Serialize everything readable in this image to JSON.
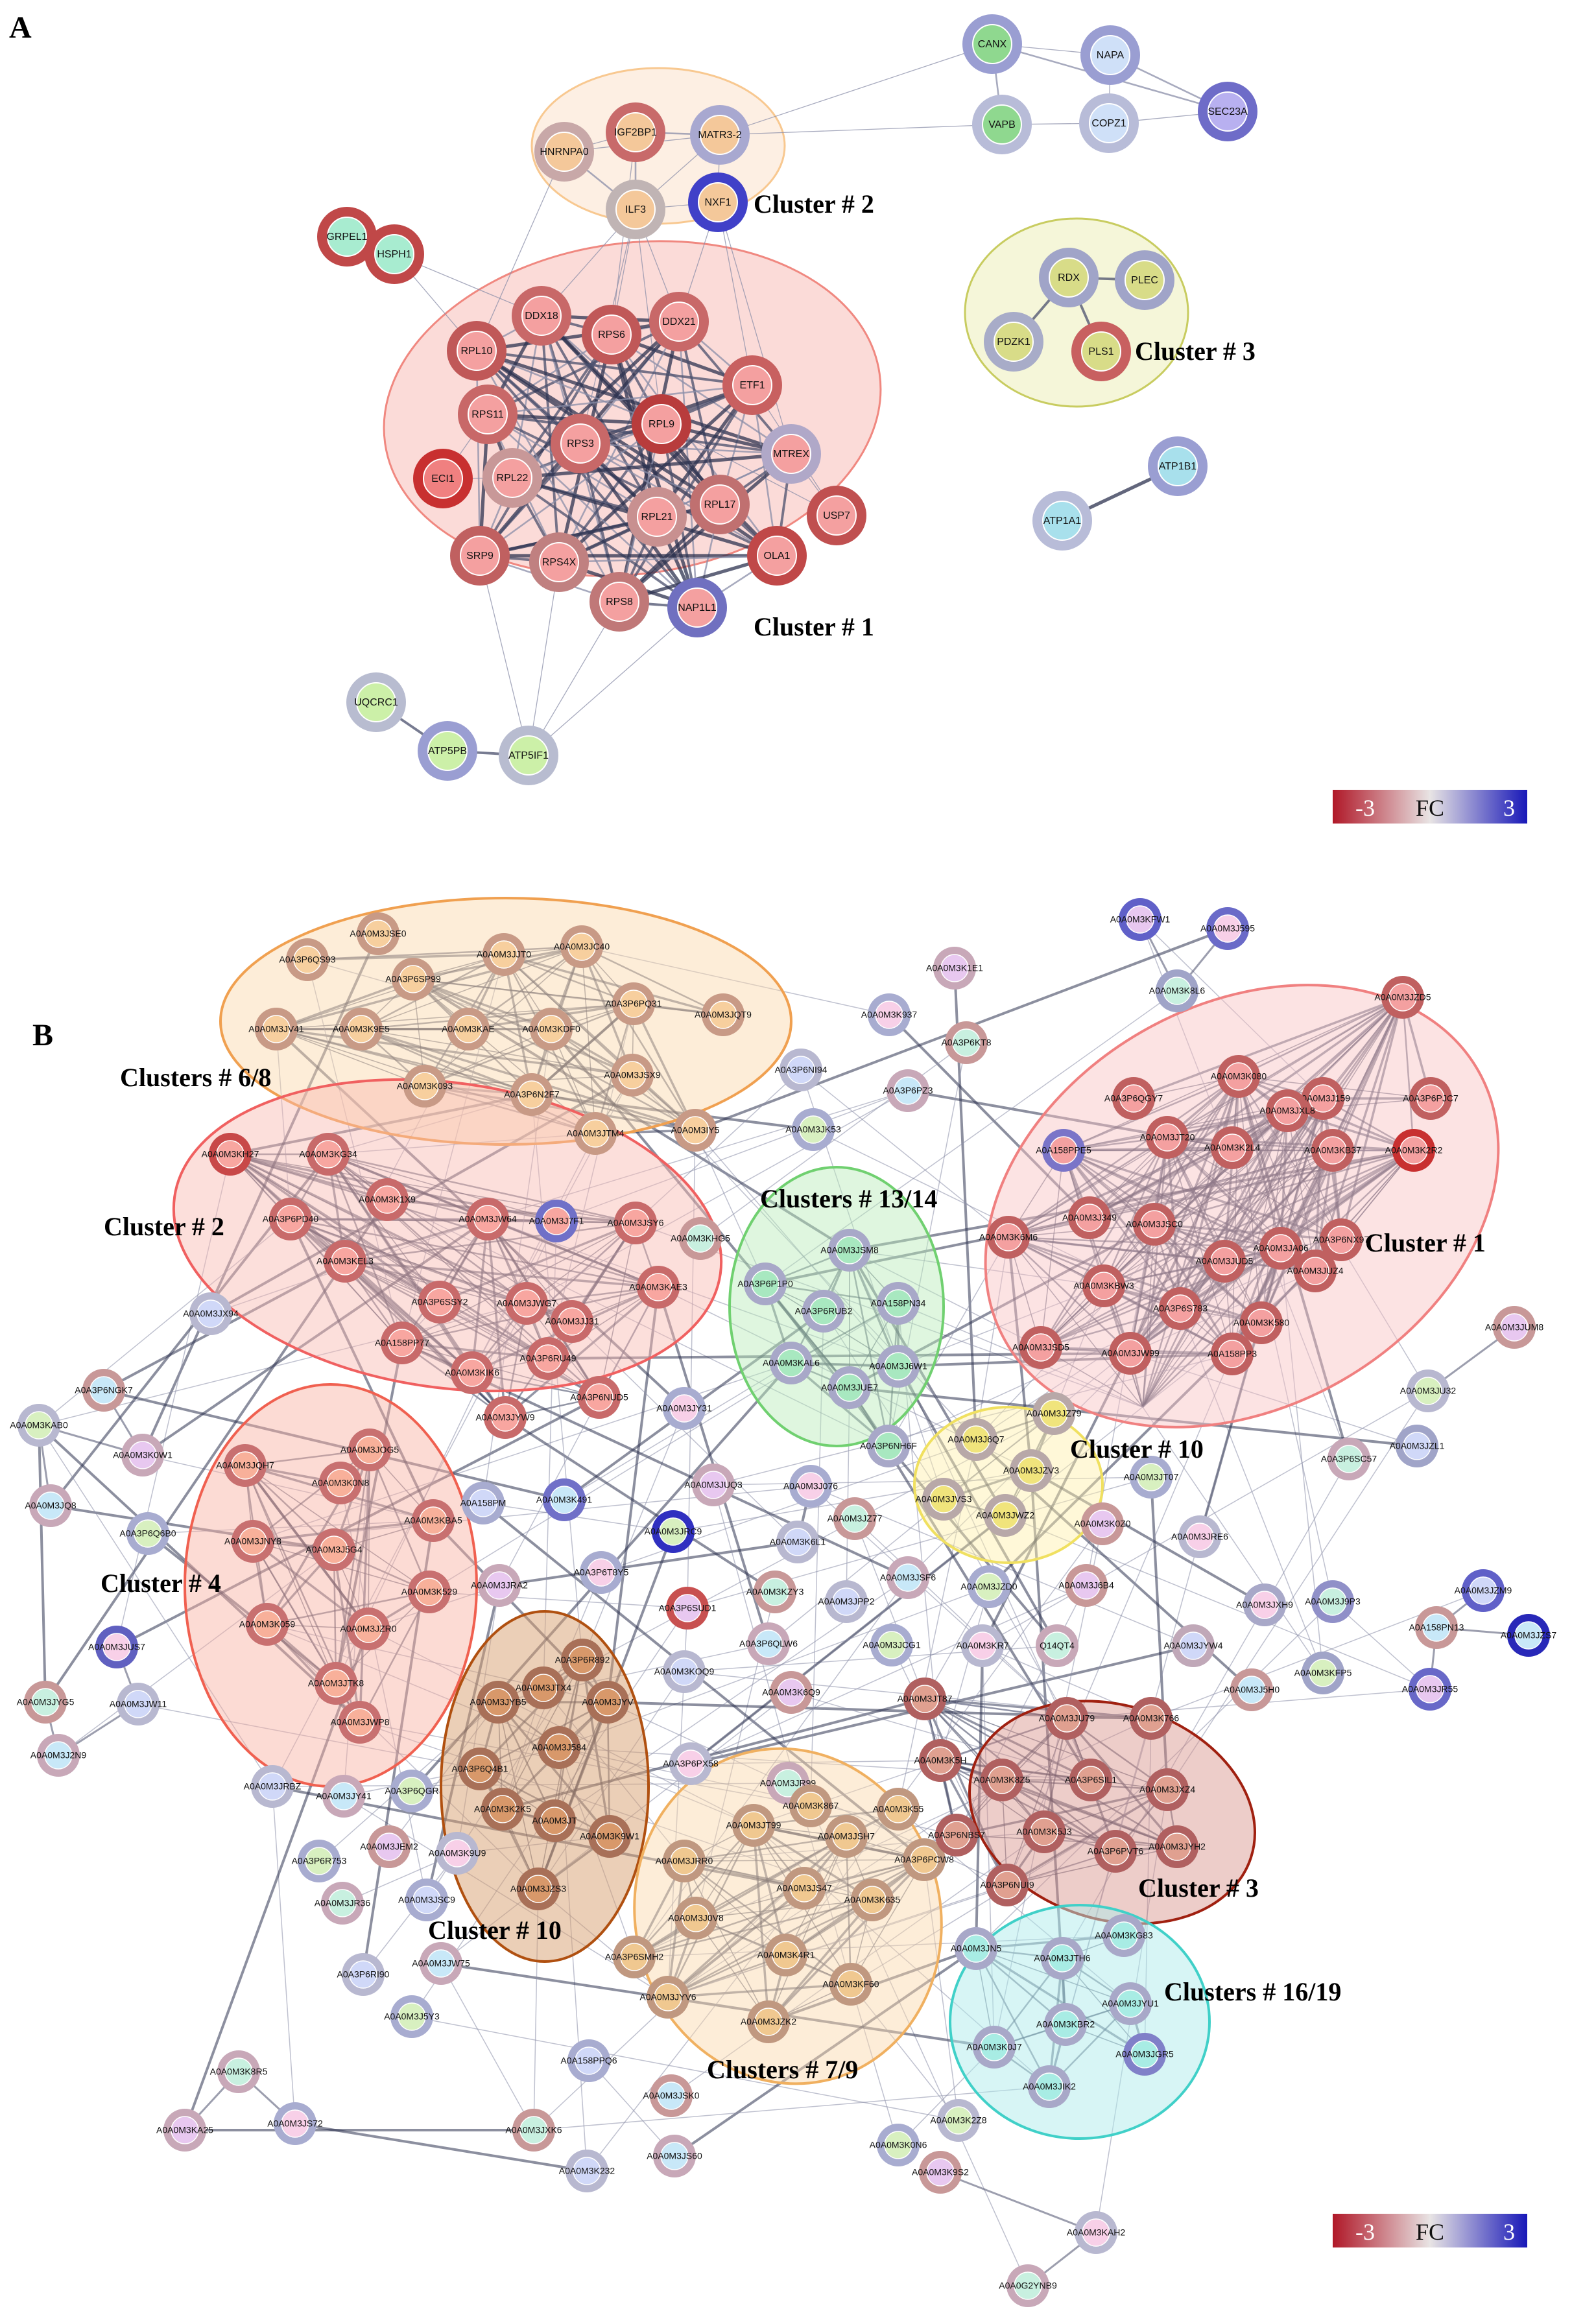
{
  "panel_a": {
    "label": "A",
    "clusters": [
      {
        "label": "Cluster # 1",
        "color": "#f08880"
      },
      {
        "label": "Cluster # 2",
        "color": "#f8c890"
      },
      {
        "label": "Cluster # 3",
        "color": "#c8cc60"
      }
    ],
    "nodes": [
      {
        "id": "CANX",
        "ring": "#9a9ed2",
        "fill": "#8fd88f"
      },
      {
        "id": "NAPA",
        "ring": "#9a9ed2",
        "fill": "#cfe0f8"
      },
      {
        "id": "VAPB",
        "ring": "#b8bcd8",
        "fill": "#8fd88f"
      },
      {
        "id": "COPZ1",
        "ring": "#b8bcd8",
        "fill": "#cfe0f8"
      },
      {
        "id": "SEC23A",
        "ring": "#6e6cc8",
        "fill": "#b8b0f0"
      },
      {
        "id": "IGF2BP1",
        "ring": "#c86a6a",
        "fill": "#f4c89a"
      },
      {
        "id": "MATR3-2",
        "ring": "#a8a8d0",
        "fill": "#f4c89a"
      },
      {
        "id": "HNRNPA0",
        "ring": "#c8a8a8",
        "fill": "#f4c89a"
      },
      {
        "id": "ILF3",
        "ring": "#c0b4b4",
        "fill": "#f4c89a"
      },
      {
        "id": "NXF1",
        "ring": "#4040c8",
        "fill": "#f4c89a"
      },
      {
        "id": "GRPEL1",
        "ring": "#c04848",
        "fill": "#a8ecd0"
      },
      {
        "id": "HSPH1",
        "ring": "#c04848",
        "fill": "#a8ecd0"
      },
      {
        "id": "RDX",
        "ring": "#a0a4c8",
        "fill": "#d8dc88"
      },
      {
        "id": "PLEC",
        "ring": "#a0a4c8",
        "fill": "#d8dc88"
      },
      {
        "id": "PDZK1",
        "ring": "#a8acc8",
        "fill": "#d8dc88"
      },
      {
        "id": "PLS1",
        "ring": "#c86060",
        "fill": "#d8dc88"
      },
      {
        "id": "DDX18",
        "ring": "#c86868",
        "fill": "#f4a0a0"
      },
      {
        "id": "RPS6",
        "ring": "#c05858",
        "fill": "#f4a0a0"
      },
      {
        "id": "DDX21",
        "ring": "#c86868",
        "fill": "#f4a0a0"
      },
      {
        "id": "RPL10",
        "ring": "#c05858",
        "fill": "#f4a0a0"
      },
      {
        "id": "ETF1",
        "ring": "#c86060",
        "fill": "#f4a0a0"
      },
      {
        "id": "RPS11",
        "ring": "#c86868",
        "fill": "#f4a0a0"
      },
      {
        "id": "RPL9",
        "ring": "#b83c3c",
        "fill": "#f4a0a0"
      },
      {
        "id": "RPS3",
        "ring": "#c86868",
        "fill": "#f4a0a0"
      },
      {
        "id": "MTREX",
        "ring": "#b0a8c8",
        "fill": "#f4a0a0"
      },
      {
        "id": "ECI1",
        "ring": "#c83030",
        "fill": "#f08080"
      },
      {
        "id": "RPL22",
        "ring": "#c89898",
        "fill": "#f4a0a0"
      },
      {
        "id": "RPL21",
        "ring": "#c89090",
        "fill": "#f4a0a0"
      },
      {
        "id": "RPL17",
        "ring": "#c07070",
        "fill": "#f4a0a0"
      },
      {
        "id": "USP7",
        "ring": "#c05050",
        "fill": "#f4a0a0"
      },
      {
        "id": "SRP9",
        "ring": "#c06060",
        "fill": "#f4a0a0"
      },
      {
        "id": "RPS4X",
        "ring": "#c08080",
        "fill": "#f4a0a0"
      },
      {
        "id": "OLA1",
        "ring": "#c04848",
        "fill": "#f4a0a0"
      },
      {
        "id": "RPS8",
        "ring": "#c07878",
        "fill": "#f4a0a0"
      },
      {
        "id": "NAP1L1",
        "ring": "#7070c0",
        "fill": "#f4a0a0"
      },
      {
        "id": "ATP1B1",
        "ring": "#9a9ed2",
        "fill": "#a8e0ec"
      },
      {
        "id": "ATP1A1",
        "ring": "#b8bcd8",
        "fill": "#a8e0ec"
      },
      {
        "id": "UQCRC1",
        "ring": "#b8bcd0",
        "fill": "#ccf0a8"
      },
      {
        "id": "ATP5PB",
        "ring": "#9a9ed2",
        "fill": "#ccf0a8"
      },
      {
        "id": "ATP5IF1",
        "ring": "#b8bcd0",
        "fill": "#ccf0a8"
      }
    ],
    "legend": {
      "min": "-3",
      "title": "FC",
      "max": "3",
      "low_color": "#b01828",
      "mid_color": "#e8e4e4",
      "high_color": "#1818b8"
    }
  },
  "panel_b": {
    "label": "B",
    "clusters": [
      {
        "label": "Clusters # 6/8",
        "color": "#f0a050"
      },
      {
        "label": "Cluster # 2",
        "color": "#f06060"
      },
      {
        "label": "Clusters # 13/14",
        "color": "#70d070"
      },
      {
        "label": "Cluster # 1",
        "color": "#f08080"
      },
      {
        "label": "Cluster # 10",
        "color": "#f0e060"
      },
      {
        "label": "Cluster # 4",
        "color": "#f06050"
      },
      {
        "label": "Cluster # 10",
        "color": "#b05010"
      },
      {
        "label": "Cluster # 3",
        "color": "#a02010"
      },
      {
        "label": "Clusters # 7/9",
        "color": "#f0b060"
      },
      {
        "label": "Clusters # 16/19",
        "color": "#40d0c8"
      }
    ],
    "nodes": [
      "A0A0M3JSE0",
      "A0A0M3JC40",
      "A0A0M3JJT0",
      "A0A3P6QS93",
      "A0A3P6SP99",
      "A0A3P6PQ31",
      "A0A0M3JQT9",
      "A0A0M3JV41",
      "A0A0M3K9E5",
      "A0A0M3KAE",
      "A0A0M3KDF0",
      "A0A0M3K093",
      "A0A3P6N2F7",
      "A0A0M3JSX9",
      "A0A0M3JTM4",
      "A0A0M3IY5",
      "A0A0M3KH27",
      "A0A0M3KG34",
      "A0A0M3K1X9",
      "A0A3P6PD40",
      "A0A0M3JW64",
      "A0A0M3J7F1",
      "A0A0M3JSY6",
      "A0A0M3KEL3",
      "A0A3P6SSY2",
      "A0A0M3JWG7",
      "A0A0M3KAE3",
      "A0A0M3JJ31",
      "A0A158PP77",
      "A0A0M3KIK6",
      "A0A3P6RU49",
      "A0A3P6NUD5",
      "A0A0M3JYW9",
      "A0A0M3JY31",
      "A0A0M3KHG5",
      "A0A0M3JX94",
      "A0A0M3JSM8",
      "A0A3P6P1P0",
      "A0A3P6RUB2",
      "A0A158PN34",
      "A0A0M3KAL6",
      "A0A0M3J6W1",
      "A0A0M3JUE7",
      "A0A3P6NH6F",
      "A0A0M3K1E1",
      "A0A0M3K937",
      "A0A3P6KT8",
      "A0A3P6NI94",
      "A0A3P6PZ3",
      "A0A0M3JK53",
      "A0A0M3KFW1",
      "A0A0M3J595",
      "A0A0M3K8L6",
      "A0A0M3JZD5",
      "A0A0M3K080",
      "A0A3P6QGY7",
      "A0A0M3J159",
      "A0A0M3JXL8",
      "A0A3P6PJC7",
      "A0A158PPE5",
      "A0A0M3JT20",
      "A0A0M3K2L4",
      "A0A0M3KB37",
      "A0A0M3K2R2",
      "A0A0M3J349",
      "A0A0M3JSC0",
      "A0A0M3JA06",
      "A0A3P6NX97",
      "A0A0M3K6M6",
      "A0A0M3JUD5",
      "A0A0M3JUZ4",
      "A0A0M3KBW3",
      "A0A3P6S783",
      "A0A0M3K580",
      "A0A0M3JUM8",
      "A0A0M3JSD5",
      "A0A0M3JW99",
      "A0A158PP3",
      "A0A158PN13",
      "A0A0M3JU32",
      "A0A0M3JZ79",
      "A0A0M3J6Q7",
      "A0A0M3JZV3",
      "A0A0M3JVS3",
      "A0A0M3JWZ2",
      "A0A0M3JT07",
      "A0A0M3K0Z0",
      "A0A0M3JRE6",
      "A0A3P6SC57",
      "A0A0M3JZL1",
      "A0A3P6NGK7",
      "A0A0M3KAB0",
      "A0A0M3K0W1",
      "A0A0M3JQH7",
      "A0A0M3JOG5",
      "A0A0M3K0N8",
      "A0A0M3JQ8",
      "A0A3P6Q6B0",
      "A0A0M3JNY8",
      "A0A0M3J5G4",
      "A0A0M3KBA5",
      "A0A158PM",
      "A0A0M3K491",
      "A0A0M3JRC9",
      "A0A0M3JUQ3",
      "A0A0M3J076",
      "A0A0M3JZ77",
      "A0A0M3K6L1",
      "A0A0M3JSF6",
      "A0A0M3JZD0",
      "A0A0M3J6B4",
      "A0A0M3JXH9",
      "A0A0M3J9P3",
      "A0A0M3JZM9",
      "A0A0M3JZS7",
      "A0A0M3K529",
      "A0A0M3JRA2",
      "A0A3P6T8Y5",
      "A0A0M3KZY3",
      "A0A0M3JPP2",
      "A0A0M3K059",
      "A0A0M3JZR0",
      "A0A3P6SUD1",
      "A0A0M3KR7",
      "Q14QT4",
      "A0A0M3JYW4",
      "A0A0M3JTK8",
      "A0A0M3JWP8",
      "A0A3P6R892",
      "A0A0M3JTX4",
      "A0A0M3JYV",
      "A0A0M3KOQ9",
      "A0A3P6QLW6",
      "A0A0M3JCG1",
      "A0A0M3K6Q9",
      "A0A0M3JT87",
      "A0A0M3JU79",
      "A0A0M3K766",
      "A0A0M3J5H0",
      "A0A0M3KFP5",
      "A0A0M3JR55",
      "A0A0M3JUS7",
      "A0A0M3JYG5",
      "A0A0M3JW11",
      "A0A0M3J2N9",
      "A0A0M3JYB5",
      "A0A0M3J584",
      "A0A3P6PX58",
      "A0A0M3JR99",
      "A0A0M3K867",
      "A0A0M3K5H",
      "A0A0M3K8Z5",
      "A0A3P6SIL1",
      "A0A0M3JXZ4",
      "A0A0M3JYH2",
      "A0A0M3JRBZ",
      "A0A0M3JY41",
      "A0A3P6QGR",
      "A0A3P6Q4B1",
      "A0A0M3K2K5",
      "A0A0M3JT",
      "A0A0M3K9W1",
      "A0A0M3JT99",
      "A0A0M3JSH7",
      "A0A0M3K55",
      "A0A3P6PCW8",
      "A0A3P6NBS7",
      "A0A0M3K5J3",
      "A0A3P6PVT6",
      "A0A3P6R753",
      "A0A0M3JEM2",
      "A0A0M3K9U9",
      "A0A0M3JR36",
      "A0A0M3JSC9",
      "A0A0M3JZS3",
      "A0A0M3JRR0",
      "A0A0M3JS47",
      "A0A0M3K635",
      "A0A3P6NUI9",
      "A0A3P6RI90",
      "A0A0M3JW75",
      "A0A0M3J0V8",
      "A0A3P6SMH2",
      "A0A0M3K4R1",
      "A0A0M3KF60",
      "A0A0M3JN5",
      "A0A0M3JTH6",
      "A0A0M3KG83",
      "A0A0M3JYU1",
      "A0A0M3KBR2",
      "A0A0M3JGR5",
      "A0A0M3JYV6",
      "A0A0M3JZK2",
      "A0A0M3J5Y3",
      "A0A0M3K0J7",
      "A0A0M3JIK2",
      "A0A0M3K8R5",
      "A0A158PPQ6",
      "A0A0M3JSK0",
      "A0A0M3K2Z8",
      "A0A0M3KA25",
      "A0A0M3JS72",
      "A0A0M3JXK6",
      "A0A0M3K232",
      "A0A0M3JS60",
      "A0A0M3K0N6",
      "A0A0M3K9S2",
      "A0A0M3KAH2",
      "A0A0G2YNB9"
    ],
    "legend": {
      "min": "-3",
      "title": "FC",
      "max": "3",
      "low_color": "#b01828",
      "mid_color": "#e8e4e4",
      "high_color": "#1818b8"
    }
  }
}
